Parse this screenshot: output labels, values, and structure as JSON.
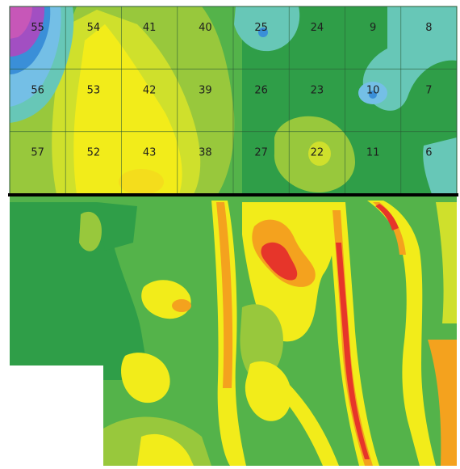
{
  "upper_grid": {
    "rows": [
      [
        "55",
        "54",
        "41",
        "40",
        "25",
        "24",
        "9",
        "8"
      ],
      [
        "56",
        "53",
        "42",
        "39",
        "26",
        "23",
        "10",
        "7"
      ],
      [
        "57",
        "52",
        "43",
        "38",
        "27",
        "22",
        "11",
        "6"
      ]
    ]
  },
  "colors": {
    "dark_green": "#2f9e48",
    "mid_green": "#54b34a",
    "light_green": "#98c83c",
    "yellow_green": "#cfe02c",
    "yellow": "#f2ec1a",
    "orange": "#f4a21e",
    "red": "#e6352a",
    "teal": "#67c7b7",
    "light_blue": "#74bfe6",
    "blue": "#3a8fd8",
    "purple": "#a24fc2",
    "magenta": "#c757b8",
    "divider": "#000000",
    "grid_line": "#2a5a34"
  }
}
